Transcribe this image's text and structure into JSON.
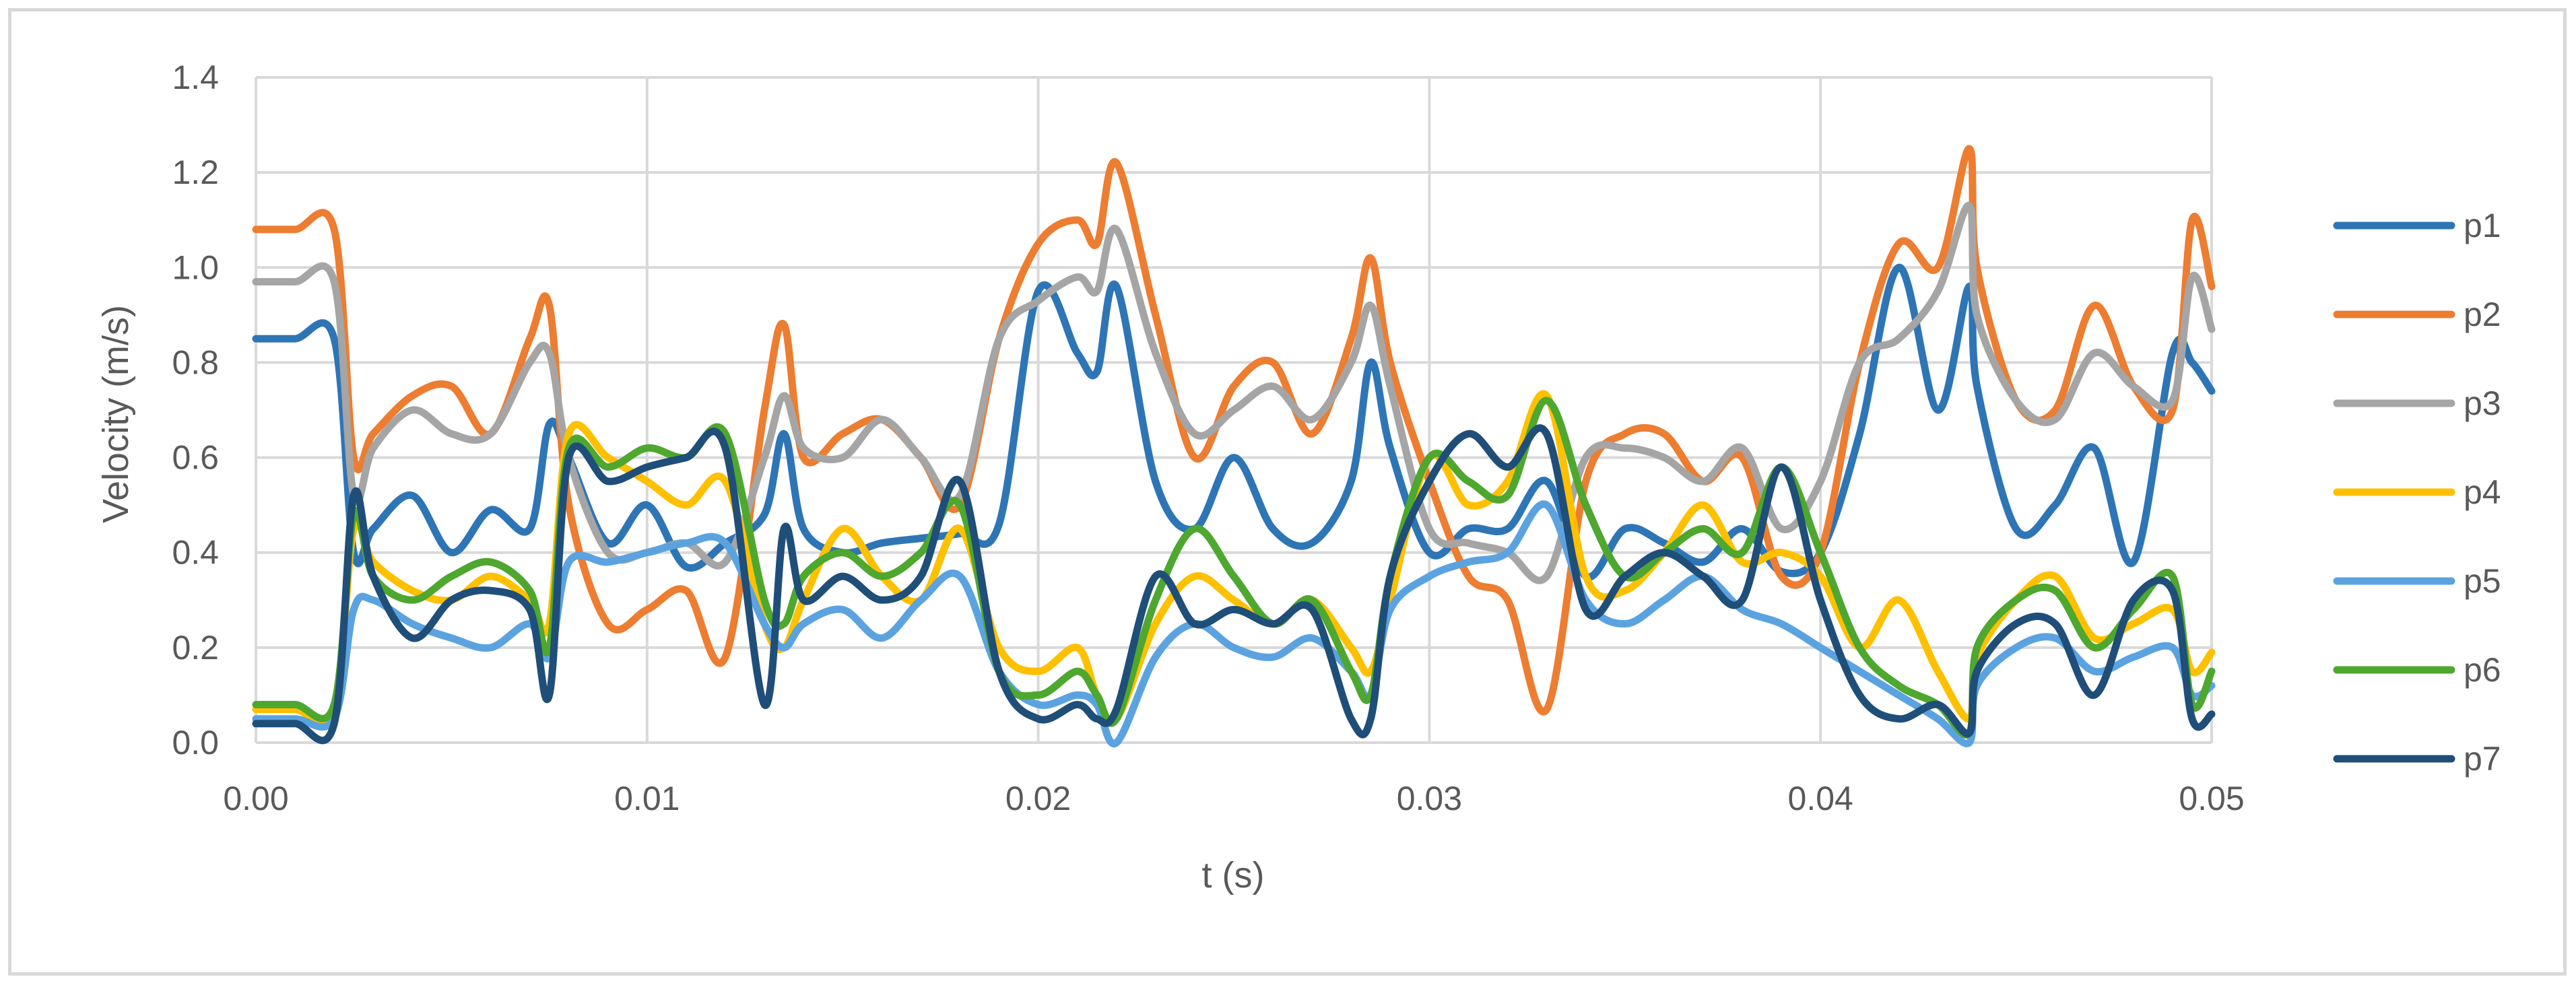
{
  "chart_data": {
    "type": "line",
    "title": "",
    "xlabel": "t (s)",
    "ylabel": "Velocity (m/s)",
    "xlim": [
      0,
      0.05
    ],
    "ylim": [
      0,
      1.4
    ],
    "x_ticks": [
      "0.00",
      "0.01",
      "0.02",
      "0.03",
      "0.04",
      "0.05"
    ],
    "y_ticks": [
      "0.0",
      "0.2",
      "0.4",
      "0.6",
      "0.8",
      "1.0",
      "1.2",
      "1.4"
    ],
    "grid": true,
    "legend_position": "right",
    "x": [
      0,
      0.001,
      0.002,
      0.0025,
      0.003,
      0.004,
      0.005,
      0.006,
      0.007,
      0.0075,
      0.008,
      0.009,
      0.01,
      0.011,
      0.012,
      0.013,
      0.0135,
      0.014,
      0.015,
      0.016,
      0.017,
      0.018,
      0.019,
      0.02,
      0.021,
      0.0215,
      0.022,
      0.023,
      0.024,
      0.025,
      0.026,
      0.027,
      0.028,
      0.0285,
      0.029,
      0.03,
      0.031,
      0.032,
      0.033,
      0.034,
      0.035,
      0.036,
      0.037,
      0.038,
      0.039,
      0.04,
      0.041,
      0.042,
      0.043,
      0.0438,
      0.044,
      0.045,
      0.046,
      0.047,
      0.048,
      0.049,
      0.0495,
      0.05
    ],
    "series": [
      {
        "name": "p1",
        "color": "#2e75b6",
        "values": [
          0.85,
          0.85,
          0.85,
          0.4,
          0.45,
          0.52,
          0.4,
          0.49,
          0.45,
          0.67,
          0.6,
          0.42,
          0.5,
          0.37,
          0.42,
          0.48,
          0.65,
          0.45,
          0.4,
          0.42,
          0.43,
          0.44,
          0.46,
          0.95,
          0.82,
          0.78,
          0.96,
          0.55,
          0.45,
          0.6,
          0.45,
          0.42,
          0.55,
          0.8,
          0.62,
          0.4,
          0.45,
          0.45,
          0.55,
          0.35,
          0.45,
          0.42,
          0.38,
          0.45,
          0.36,
          0.4,
          0.65,
          1.0,
          0.7,
          0.96,
          0.75,
          0.45,
          0.5,
          0.62,
          0.38,
          0.82,
          0.8,
          0.74
        ]
      },
      {
        "name": "p2",
        "color": "#ed7d31",
        "values": [
          1.08,
          1.08,
          1.08,
          0.6,
          0.65,
          0.73,
          0.75,
          0.65,
          0.85,
          0.92,
          0.5,
          0.25,
          0.28,
          0.32,
          0.18,
          0.7,
          0.88,
          0.6,
          0.65,
          0.68,
          0.6,
          0.5,
          0.85,
          1.05,
          1.1,
          1.05,
          1.22,
          0.9,
          0.6,
          0.75,
          0.8,
          0.65,
          0.85,
          1.02,
          0.8,
          0.55,
          0.35,
          0.3,
          0.07,
          0.55,
          0.65,
          0.65,
          0.55,
          0.6,
          0.35,
          0.4,
          0.8,
          1.05,
          1.0,
          1.25,
          1.0,
          0.72,
          0.7,
          0.92,
          0.75,
          0.7,
          1.1,
          0.96
        ]
      },
      {
        "name": "p3",
        "color": "#a5a5a5",
        "values": [
          0.97,
          0.97,
          0.97,
          0.52,
          0.62,
          0.7,
          0.65,
          0.65,
          0.8,
          0.82,
          0.6,
          0.4,
          0.4,
          0.42,
          0.38,
          0.6,
          0.73,
          0.62,
          0.6,
          0.68,
          0.6,
          0.52,
          0.85,
          0.93,
          0.98,
          0.95,
          1.08,
          0.82,
          0.65,
          0.7,
          0.75,
          0.68,
          0.8,
          0.92,
          0.75,
          0.45,
          0.42,
          0.4,
          0.35,
          0.6,
          0.62,
          0.6,
          0.55,
          0.62,
          0.45,
          0.55,
          0.8,
          0.85,
          0.95,
          1.13,
          0.9,
          0.72,
          0.68,
          0.82,
          0.75,
          0.72,
          0.98,
          0.87
        ]
      },
      {
        "name": "p4",
        "color": "#ffc000",
        "values": [
          0.07,
          0.07,
          0.07,
          0.45,
          0.38,
          0.32,
          0.3,
          0.35,
          0.3,
          0.25,
          0.65,
          0.6,
          0.55,
          0.5,
          0.55,
          0.25,
          0.2,
          0.3,
          0.45,
          0.35,
          0.3,
          0.45,
          0.2,
          0.15,
          0.2,
          0.1,
          0.05,
          0.25,
          0.35,
          0.3,
          0.25,
          0.3,
          0.2,
          0.15,
          0.3,
          0.6,
          0.5,
          0.55,
          0.73,
          0.35,
          0.32,
          0.4,
          0.5,
          0.38,
          0.4,
          0.35,
          0.2,
          0.3,
          0.15,
          0.05,
          0.18,
          0.3,
          0.35,
          0.22,
          0.25,
          0.28,
          0.15,
          0.19
        ]
      },
      {
        "name": "p5",
        "color": "#5ba3e0",
        "values": [
          0.05,
          0.05,
          0.05,
          0.28,
          0.3,
          0.25,
          0.22,
          0.2,
          0.25,
          0.18,
          0.38,
          0.38,
          0.4,
          0.42,
          0.42,
          0.25,
          0.2,
          0.25,
          0.28,
          0.22,
          0.3,
          0.35,
          0.15,
          0.08,
          0.1,
          0.08,
          0.0,
          0.18,
          0.25,
          0.2,
          0.18,
          0.22,
          0.15,
          0.1,
          0.28,
          0.35,
          0.38,
          0.4,
          0.5,
          0.3,
          0.25,
          0.3,
          0.35,
          0.28,
          0.25,
          0.2,
          0.15,
          0.1,
          0.05,
          0.0,
          0.12,
          0.2,
          0.22,
          0.15,
          0.18,
          0.2,
          0.1,
          0.12
        ]
      },
      {
        "name": "p6",
        "color": "#4ea72e",
        "values": [
          0.08,
          0.08,
          0.08,
          0.48,
          0.35,
          0.3,
          0.35,
          0.38,
          0.32,
          0.2,
          0.62,
          0.58,
          0.62,
          0.6,
          0.65,
          0.3,
          0.25,
          0.35,
          0.4,
          0.35,
          0.4,
          0.5,
          0.15,
          0.1,
          0.15,
          0.1,
          0.05,
          0.3,
          0.45,
          0.35,
          0.25,
          0.3,
          0.15,
          0.1,
          0.35,
          0.6,
          0.55,
          0.52,
          0.72,
          0.5,
          0.35,
          0.4,
          0.45,
          0.4,
          0.58,
          0.4,
          0.2,
          0.12,
          0.08,
          0.02,
          0.2,
          0.3,
          0.32,
          0.2,
          0.28,
          0.35,
          0.08,
          0.15
        ]
      },
      {
        "name": "p7",
        "color": "#1f4e79",
        "values": [
          0.04,
          0.04,
          0.04,
          0.52,
          0.35,
          0.22,
          0.3,
          0.32,
          0.28,
          0.1,
          0.6,
          0.55,
          0.58,
          0.6,
          0.62,
          0.08,
          0.45,
          0.3,
          0.35,
          0.3,
          0.35,
          0.55,
          0.15,
          0.05,
          0.08,
          0.05,
          0.07,
          0.35,
          0.25,
          0.28,
          0.25,
          0.28,
          0.05,
          0.05,
          0.35,
          0.55,
          0.65,
          0.58,
          0.65,
          0.28,
          0.35,
          0.4,
          0.35,
          0.3,
          0.58,
          0.3,
          0.1,
          0.05,
          0.08,
          0.02,
          0.15,
          0.25,
          0.25,
          0.1,
          0.3,
          0.32,
          0.05,
          0.06
        ]
      }
    ]
  }
}
